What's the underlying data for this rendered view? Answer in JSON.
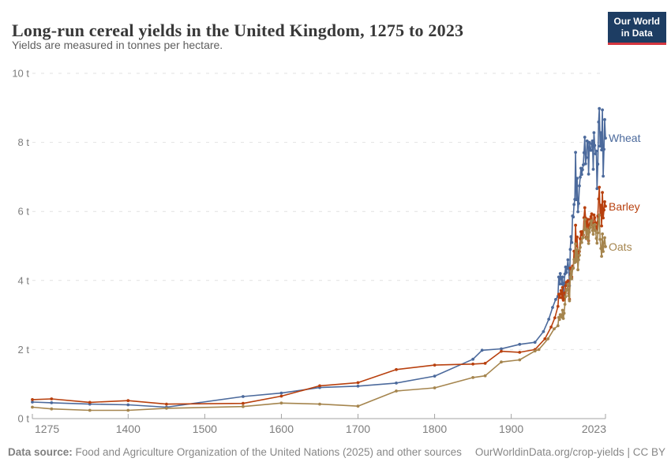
{
  "header": {
    "title": "Long-run cereal yields in the United Kingdom, 1275 to 2023",
    "subtitle": "Yields are measured in tonnes per hectare.",
    "logo_line1": "Our World",
    "logo_line2": "in Data"
  },
  "footer": {
    "source_label": "Data source:",
    "source_text": " Food and Agriculture Organization of the United Nations (2025) and other sources",
    "credit": "OurWorldinData.org/crop-yields | CC BY"
  },
  "colors": {
    "wheat": "#4C6A9C",
    "barley": "#B8400E",
    "oats": "#A5854E",
    "gridline": "#e2e2e2",
    "axis": "#a3a3a3",
    "tick_text": "#7d7d7d",
    "logo_bg": "#1d3d63",
    "logo_bar": "#d5353f"
  },
  "chart_data": {
    "type": "line",
    "title": "Long-run cereal yields in the United Kingdom, 1275 to 2023",
    "subtitle": "Yields are measured in tonnes per hectare.",
    "xlabel": "",
    "ylabel": "tonnes per hectare",
    "unit": "t",
    "xlim": [
      1275,
      2023
    ],
    "ylim": [
      0,
      10
    ],
    "grid": "horizontal-dashed",
    "legend_position": "right-end-of-line",
    "x_ticks": [
      {
        "year": 1275,
        "label": "1275"
      },
      {
        "year": 1400,
        "label": "1400"
      },
      {
        "year": 1500,
        "label": "1500"
      },
      {
        "year": 1600,
        "label": "1600"
      },
      {
        "year": 1700,
        "label": "1700"
      },
      {
        "year": 1800,
        "label": "1800"
      },
      {
        "year": 1900,
        "label": "1900"
      },
      {
        "year": 2023,
        "label": "2023"
      }
    ],
    "y_ticks": [
      {
        "value": 0,
        "label": "0 t"
      },
      {
        "value": 2,
        "label": "2 t"
      },
      {
        "value": 4,
        "label": "4 t"
      },
      {
        "value": 6,
        "label": "6 t"
      },
      {
        "value": 8,
        "label": "8 t"
      },
      {
        "value": 10,
        "label": "10 t"
      }
    ],
    "series": [
      {
        "name": "Wheat",
        "color": "#4C6A9C",
        "points": [
          [
            1275,
            0.48
          ],
          [
            1300,
            0.46
          ],
          [
            1350,
            0.42
          ],
          [
            1400,
            0.4
          ],
          [
            1450,
            0.33
          ],
          [
            1550,
            0.64
          ],
          [
            1600,
            0.74
          ],
          [
            1650,
            0.9
          ],
          [
            1700,
            0.94
          ],
          [
            1750,
            1.03
          ],
          [
            1800,
            1.23
          ],
          [
            1850,
            1.72
          ],
          [
            1862,
            1.98
          ],
          [
            1887,
            2.02
          ],
          [
            1911,
            2.15
          ],
          [
            1931,
            2.21
          ],
          [
            1942,
            2.52
          ],
          [
            1949,
            2.88
          ],
          [
            1954,
            3.22
          ],
          [
            1958,
            3.45
          ],
          [
            1961,
            3.54
          ],
          [
            1962,
            4.1
          ],
          [
            1963,
            3.9
          ],
          [
            1964,
            4.2
          ],
          [
            1965,
            4.06
          ],
          [
            1966,
            3.9
          ],
          [
            1967,
            4.1
          ],
          [
            1968,
            3.52
          ],
          [
            1969,
            3.92
          ],
          [
            1970,
            4.19
          ],
          [
            1971,
            4.39
          ],
          [
            1972,
            4.23
          ],
          [
            1973,
            4.38
          ],
          [
            1974,
            4.6
          ],
          [
            1975,
            4.34
          ],
          [
            1976,
            3.85
          ],
          [
            1977,
            4.9
          ],
          [
            1978,
            5.27
          ],
          [
            1979,
            5.1
          ],
          [
            1980,
            5.87
          ],
          [
            1981,
            5.84
          ],
          [
            1982,
            6.2
          ],
          [
            1983,
            6.35
          ],
          [
            1984,
            7.71
          ],
          [
            1985,
            6.34
          ],
          [
            1986,
            6.96
          ],
          [
            1987,
            5.99
          ],
          [
            1988,
            6.23
          ],
          [
            1989,
            6.74
          ],
          [
            1990,
            6.99
          ],
          [
            1991,
            7.25
          ],
          [
            1992,
            7.07
          ],
          [
            1993,
            7.21
          ],
          [
            1994,
            7.35
          ],
          [
            1995,
            7.7
          ],
          [
            1996,
            8.15
          ],
          [
            1997,
            7.38
          ],
          [
            1998,
            7.56
          ],
          [
            1999,
            8.04
          ],
          [
            2000,
            8.01
          ],
          [
            2001,
            7.08
          ],
          [
            2002,
            8.0
          ],
          [
            2003,
            7.78
          ],
          [
            2004,
            7.77
          ],
          [
            2005,
            7.96
          ],
          [
            2006,
            8.04
          ],
          [
            2007,
            7.22
          ],
          [
            2008,
            8.28
          ],
          [
            2009,
            7.91
          ],
          [
            2010,
            7.67
          ],
          [
            2011,
            7.75
          ],
          [
            2012,
            6.66
          ],
          [
            2013,
            7.37
          ],
          [
            2014,
            8.59
          ],
          [
            2015,
            8.98
          ],
          [
            2016,
            7.89
          ],
          [
            2017,
            8.28
          ],
          [
            2018,
            7.78
          ],
          [
            2019,
            8.94
          ],
          [
            2020,
            7.02
          ],
          [
            2021,
            7.8
          ],
          [
            2022,
            8.66
          ],
          [
            2023,
            8.12
          ]
        ]
      },
      {
        "name": "Barley",
        "color": "#B8400E",
        "points": [
          [
            1275,
            0.55
          ],
          [
            1300,
            0.57
          ],
          [
            1350,
            0.47
          ],
          [
            1400,
            0.52
          ],
          [
            1450,
            0.42
          ],
          [
            1550,
            0.44
          ],
          [
            1600,
            0.65
          ],
          [
            1650,
            0.95
          ],
          [
            1700,
            1.04
          ],
          [
            1750,
            1.42
          ],
          [
            1800,
            1.55
          ],
          [
            1850,
            1.58
          ],
          [
            1866,
            1.6
          ],
          [
            1887,
            1.95
          ],
          [
            1911,
            1.92
          ],
          [
            1931,
            2.0
          ],
          [
            1944,
            2.31
          ],
          [
            1952,
            2.65
          ],
          [
            1957,
            2.92
          ],
          [
            1961,
            3.25
          ],
          [
            1962,
            3.6
          ],
          [
            1963,
            3.51
          ],
          [
            1964,
            3.61
          ],
          [
            1965,
            3.71
          ],
          [
            1966,
            3.5
          ],
          [
            1967,
            3.8
          ],
          [
            1968,
            3.43
          ],
          [
            1969,
            3.48
          ],
          [
            1970,
            3.64
          ],
          [
            1971,
            3.85
          ],
          [
            1972,
            3.95
          ],
          [
            1973,
            3.86
          ],
          [
            1974,
            3.99
          ],
          [
            1975,
            3.63
          ],
          [
            1976,
            3.46
          ],
          [
            1977,
            4.36
          ],
          [
            1978,
            4.25
          ],
          [
            1979,
            4.1
          ],
          [
            1980,
            4.42
          ],
          [
            1981,
            4.36
          ],
          [
            1982,
            4.85
          ],
          [
            1983,
            4.63
          ],
          [
            1984,
            5.6
          ],
          [
            1985,
            5.0
          ],
          [
            1986,
            5.26
          ],
          [
            1987,
            4.59
          ],
          [
            1988,
            4.74
          ],
          [
            1989,
            4.84
          ],
          [
            1990,
            5.21
          ],
          [
            1991,
            5.41
          ],
          [
            1992,
            5.32
          ],
          [
            1993,
            5.42
          ],
          [
            1994,
            5.32
          ],
          [
            1995,
            5.82
          ],
          [
            1996,
            6.11
          ],
          [
            1997,
            5.81
          ],
          [
            1998,
            5.26
          ],
          [
            1999,
            5.71
          ],
          [
            2000,
            5.77
          ],
          [
            2001,
            5.15
          ],
          [
            2002,
            5.61
          ],
          [
            2003,
            5.77
          ],
          [
            2004,
            5.85
          ],
          [
            2005,
            5.93
          ],
          [
            2006,
            5.6
          ],
          [
            2007,
            5.49
          ],
          [
            2008,
            5.9
          ],
          [
            2009,
            5.82
          ],
          [
            2010,
            5.67
          ],
          [
            2011,
            5.48
          ],
          [
            2012,
            5.52
          ],
          [
            2013,
            5.87
          ],
          [
            2014,
            6.36
          ],
          [
            2015,
            6.7
          ],
          [
            2016,
            5.9
          ],
          [
            2017,
            6.18
          ],
          [
            2018,
            5.58
          ],
          [
            2019,
            6.55
          ],
          [
            2020,
            5.81
          ],
          [
            2021,
            6.04
          ],
          [
            2022,
            6.28
          ],
          [
            2023,
            6.15
          ]
        ]
      },
      {
        "name": "Oats",
        "color": "#A5854E",
        "points": [
          [
            1275,
            0.33
          ],
          [
            1300,
            0.28
          ],
          [
            1350,
            0.24
          ],
          [
            1400,
            0.24
          ],
          [
            1450,
            0.3
          ],
          [
            1550,
            0.35
          ],
          [
            1600,
            0.45
          ],
          [
            1650,
            0.42
          ],
          [
            1700,
            0.36
          ],
          [
            1750,
            0.8
          ],
          [
            1800,
            0.89
          ],
          [
            1850,
            1.19
          ],
          [
            1866,
            1.24
          ],
          [
            1887,
            1.64
          ],
          [
            1911,
            1.7
          ],
          [
            1931,
            1.96
          ],
          [
            1936,
            2.0
          ],
          [
            1948,
            2.31
          ],
          [
            1956,
            2.6
          ],
          [
            1961,
            2.69
          ],
          [
            1962,
            2.93
          ],
          [
            1963,
            2.87
          ],
          [
            1964,
            3.01
          ],
          [
            1965,
            3.0
          ],
          [
            1966,
            2.94
          ],
          [
            1967,
            3.14
          ],
          [
            1968,
            2.9
          ],
          [
            1969,
            3.05
          ],
          [
            1970,
            3.31
          ],
          [
            1971,
            3.53
          ],
          [
            1972,
            3.71
          ],
          [
            1973,
            3.75
          ],
          [
            1974,
            3.89
          ],
          [
            1975,
            3.56
          ],
          [
            1976,
            3.41
          ],
          [
            1977,
            4.1
          ],
          [
            1978,
            4.26
          ],
          [
            1979,
            4.05
          ],
          [
            1980,
            4.34
          ],
          [
            1981,
            4.36
          ],
          [
            1982,
            4.61
          ],
          [
            1983,
            4.52
          ],
          [
            1984,
            5.06
          ],
          [
            1985,
            4.55
          ],
          [
            1986,
            4.89
          ],
          [
            1987,
            4.31
          ],
          [
            1988,
            4.6
          ],
          [
            1989,
            4.73
          ],
          [
            1990,
            4.96
          ],
          [
            1991,
            5.13
          ],
          [
            1992,
            5.1
          ],
          [
            1993,
            5.23
          ],
          [
            1994,
            5.25
          ],
          [
            1995,
            5.47
          ],
          [
            1996,
            5.77
          ],
          [
            1997,
            5.5
          ],
          [
            1998,
            5.21
          ],
          [
            1999,
            5.39
          ],
          [
            2000,
            5.46
          ],
          [
            2001,
            5.07
          ],
          [
            2002,
            5.4
          ],
          [
            2003,
            5.53
          ],
          [
            2004,
            5.72
          ],
          [
            2005,
            5.73
          ],
          [
            2006,
            5.45
          ],
          [
            2007,
            5.34
          ],
          [
            2008,
            5.6
          ],
          [
            2009,
            5.62
          ],
          [
            2010,
            5.44
          ],
          [
            2011,
            5.22
          ],
          [
            2012,
            5.08
          ],
          [
            2013,
            5.38
          ],
          [
            2014,
            5.76
          ],
          [
            2015,
            5.9
          ],
          [
            2016,
            5.19
          ],
          [
            2017,
            4.93
          ],
          [
            2018,
            4.7
          ],
          [
            2019,
            5.35
          ],
          [
            2020,
            4.84
          ],
          [
            2021,
            5.09
          ],
          [
            2022,
            5.24
          ],
          [
            2023,
            4.98
          ]
        ]
      }
    ]
  }
}
